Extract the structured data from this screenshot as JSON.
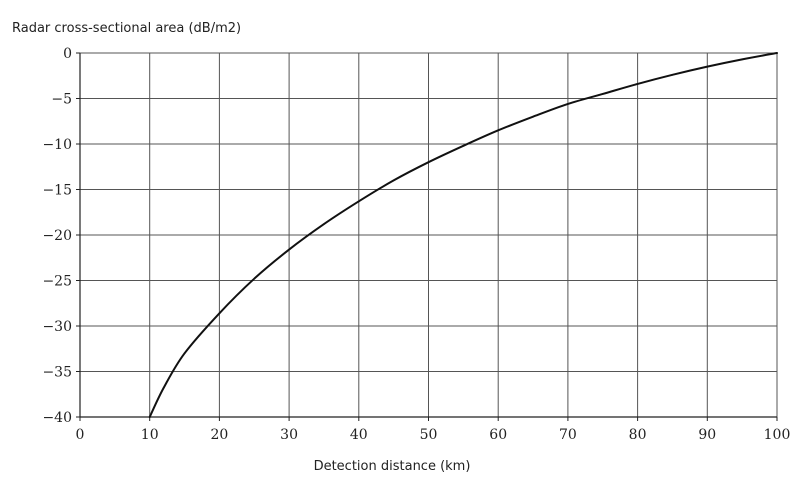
{
  "chart_data": {
    "type": "line",
    "title": "",
    "xlabel": "Detection distance (km)",
    "ylabel": "Radar cross-sectional area (dB/m2)",
    "xlim": [
      0,
      100
    ],
    "ylim": [
      -40,
      0
    ],
    "x_ticks": [
      0,
      10,
      20,
      30,
      40,
      50,
      60,
      70,
      80,
      90,
      100
    ],
    "y_ticks": [
      0,
      -5,
      -10,
      -15,
      -20,
      -25,
      -30,
      -35,
      -40
    ],
    "x_tick_labels": [
      "0",
      "10",
      "20",
      "30",
      "40",
      "50",
      "60",
      "70",
      "80",
      "90",
      "100"
    ],
    "y_tick_labels": [
      "0",
      "−5",
      "−10",
      "−15",
      "−20",
      "−25",
      "−30",
      "−35",
      "−40"
    ],
    "grid": true,
    "legend": "none",
    "line_color": "#111111",
    "grid_color": "#555555",
    "series": [
      {
        "x": [
          10,
          12,
          15,
          20,
          25,
          30,
          35,
          40,
          45,
          50,
          55,
          60,
          65,
          70,
          75,
          80,
          85,
          90,
          95,
          100
        ],
        "y": [
          -40.0,
          -36.8,
          -33.0,
          -28.6,
          -24.8,
          -21.6,
          -18.8,
          -16.3,
          -14.0,
          -12.0,
          -10.2,
          -8.5,
          -7.0,
          -5.6,
          -4.5,
          -3.4,
          -2.4,
          -1.5,
          -0.7,
          0.0
        ]
      }
    ]
  }
}
